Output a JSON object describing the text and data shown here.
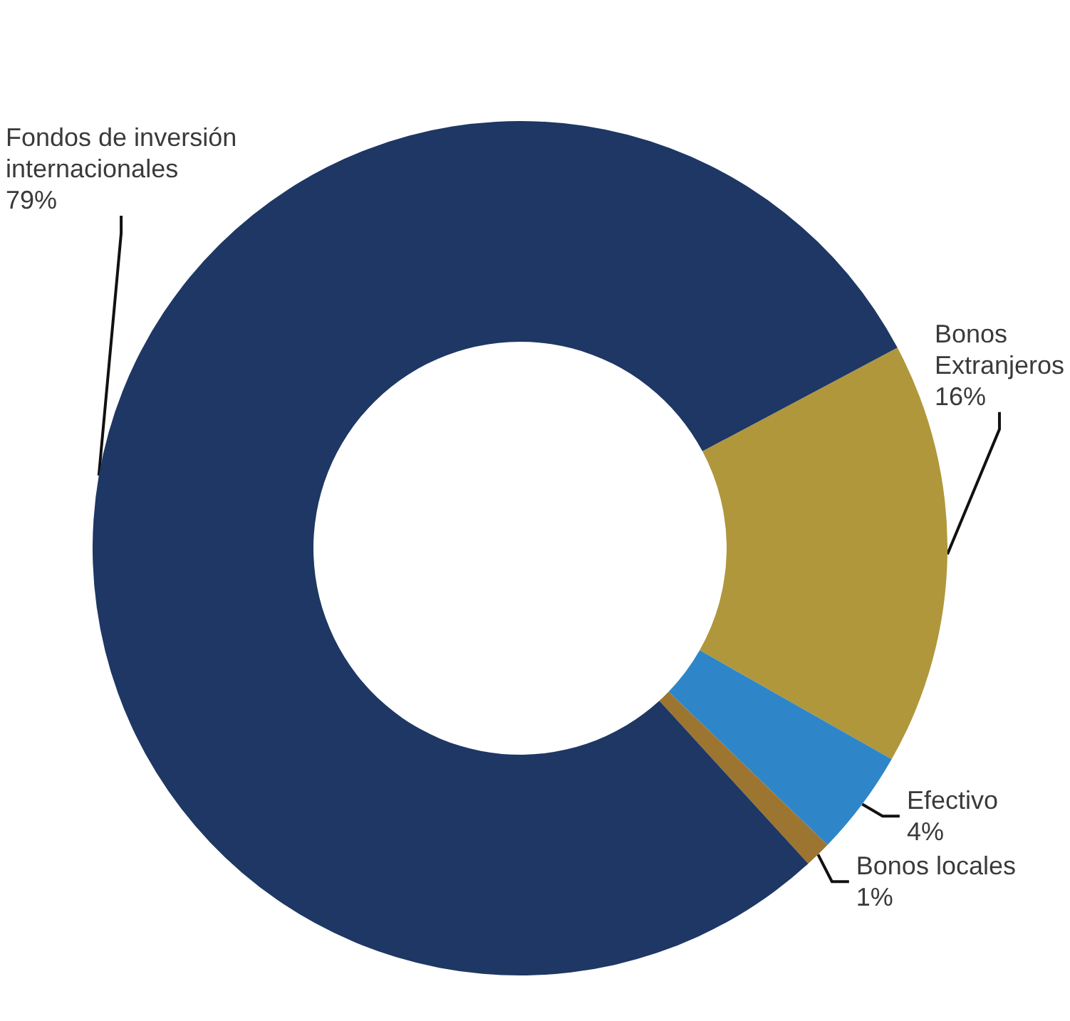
{
  "chart_data": {
    "type": "donut",
    "categories": [
      "Bonos Extranjeros",
      "Efectivo",
      "Bonos locales",
      "Fondos de inversión internacionales"
    ],
    "values": [
      16,
      4,
      1,
      79
    ],
    "value_labels": [
      "16%",
      "4%",
      "1%",
      "79%"
    ],
    "colors": [
      "#b0973c",
      "#2e86c8",
      "#9c7530",
      "#1e3764"
    ]
  }
}
